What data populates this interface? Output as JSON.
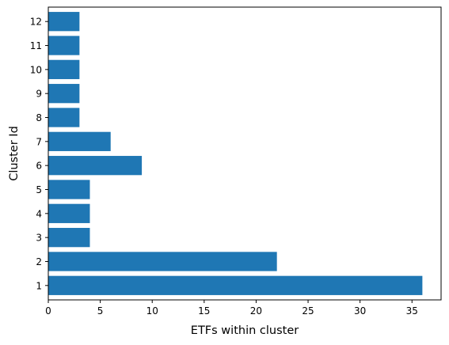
{
  "chart_data": {
    "type": "bar",
    "orientation": "horizontal",
    "categories": [
      "1",
      "2",
      "3",
      "4",
      "5",
      "6",
      "7",
      "8",
      "9",
      "10",
      "11",
      "12"
    ],
    "values": [
      36,
      22,
      4,
      4,
      4,
      9,
      6,
      3,
      3,
      3,
      3,
      3
    ],
    "xlabel": "ETFs within cluster",
    "ylabel": "Cluster Id",
    "xlim": [
      0,
      37.8
    ],
    "xticks": [
      0,
      5,
      10,
      15,
      20,
      25,
      30,
      35
    ],
    "bar_color": "#1f77b4",
    "grid": false
  }
}
